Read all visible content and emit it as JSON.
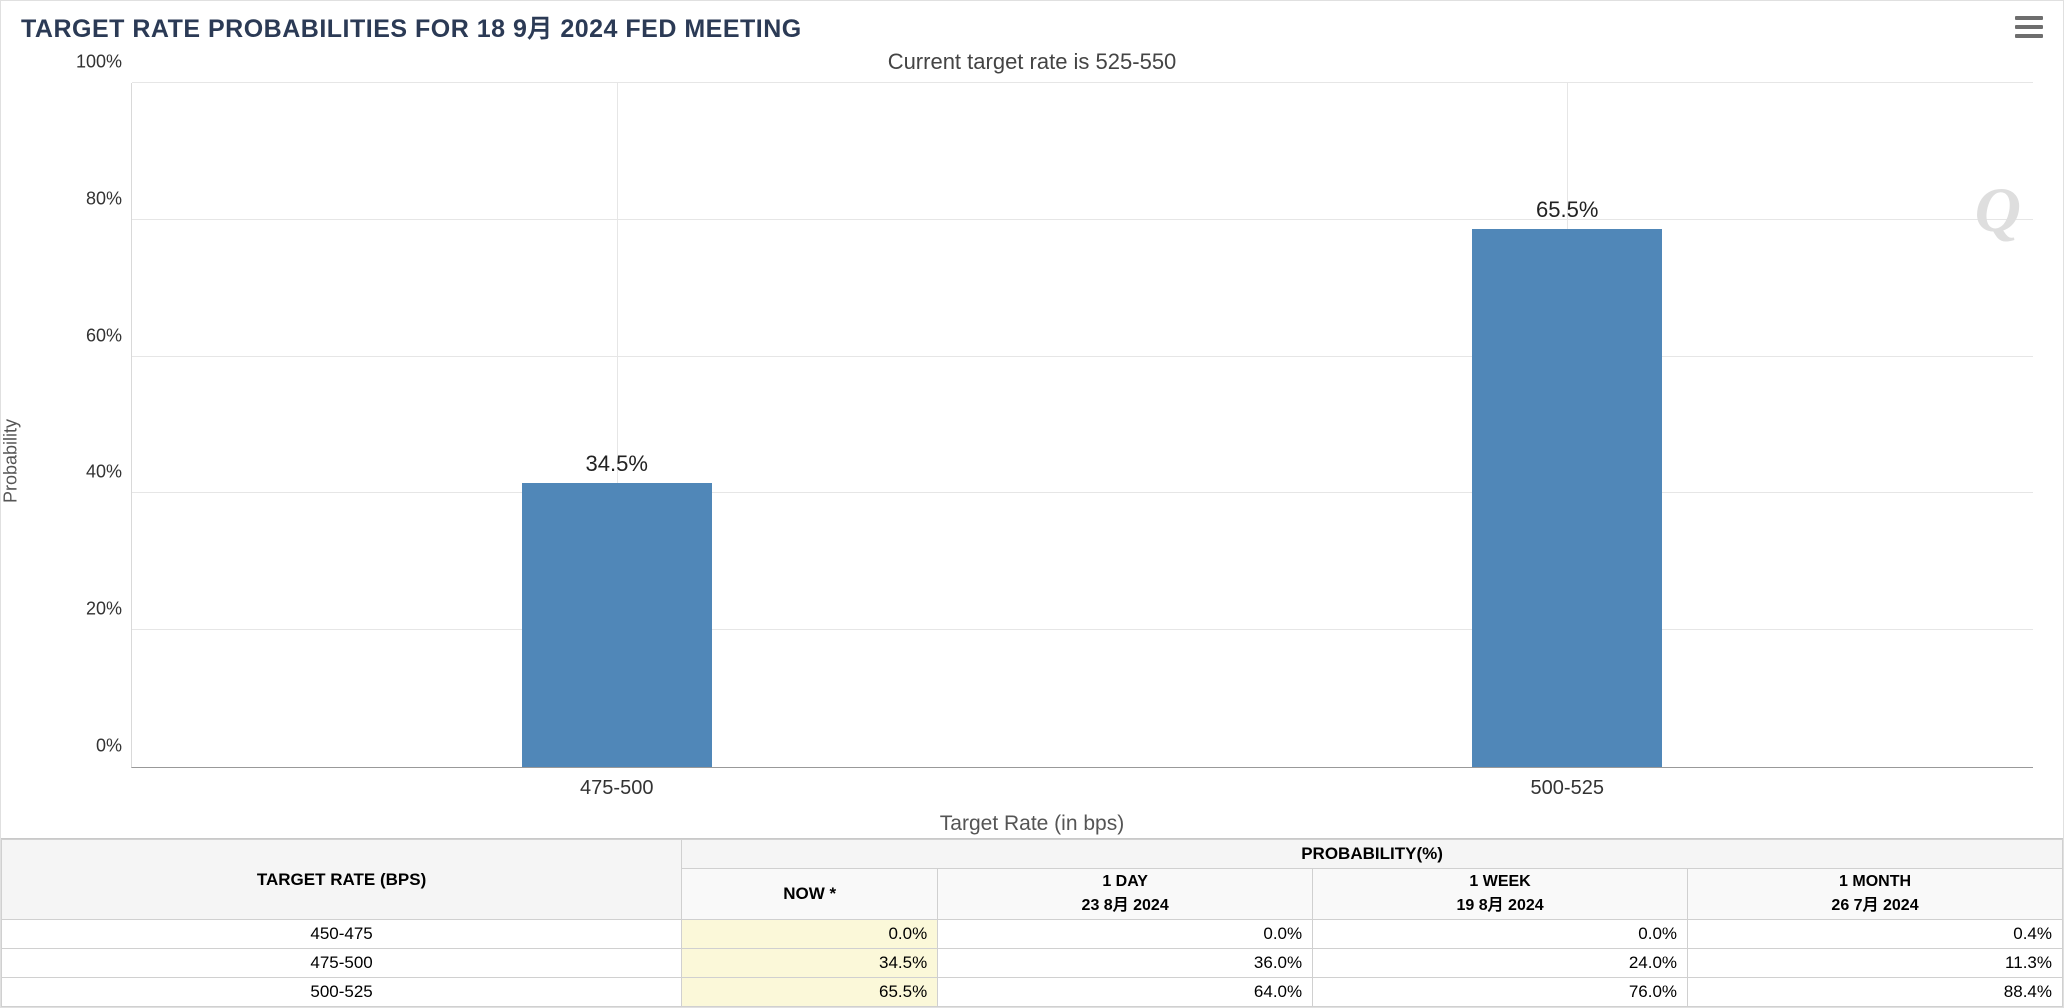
{
  "header": {
    "title": "TARGET RATE PROBABILITIES FOR 18 9月 2024 FED MEETING",
    "subtitle": "Current target rate is 525-550"
  },
  "chart": {
    "type": "bar",
    "ylabel": "Probability",
    "xlabel": "Target Rate (in bps)",
    "ylim": [
      0,
      100
    ],
    "yticks": [
      0,
      20,
      40,
      60,
      80,
      100
    ],
    "ytick_labels": [
      "0%",
      "20%",
      "40%",
      "60%",
      "80%",
      "100%"
    ],
    "categories": [
      "475-500",
      "500-525"
    ],
    "values": [
      34.5,
      65.5
    ],
    "value_labels": [
      "34.5%",
      "65.5%"
    ],
    "bar_color": "#5087b8",
    "grid_color": "#e6e6e6",
    "background_color": "#ffffff",
    "label_fontsize": 22,
    "axis_fontsize": 18,
    "bar_positions_pct": [
      25.5,
      75.5
    ],
    "watermark": "Q"
  },
  "table": {
    "col1_header": "TARGET RATE (BPS)",
    "prob_header": "PROBABILITY(%)",
    "subheaders": [
      {
        "line1": "NOW *",
        "line2": ""
      },
      {
        "line1": "1 DAY",
        "line2": "23 8月 2024"
      },
      {
        "line1": "1 WEEK",
        "line2": "19 8月 2024"
      },
      {
        "line1": "1 MONTH",
        "line2": "26 7月 2024"
      }
    ],
    "rows": [
      {
        "rate": "450-475",
        "now": "0.0%",
        "d1": "0.0%",
        "w1": "0.0%",
        "m1": "0.4%"
      },
      {
        "rate": "475-500",
        "now": "34.5%",
        "d1": "36.0%",
        "w1": "24.0%",
        "m1": "11.3%"
      },
      {
        "rate": "500-525",
        "now": "65.5%",
        "d1": "64.0%",
        "w1": "76.0%",
        "m1": "88.4%"
      }
    ]
  }
}
